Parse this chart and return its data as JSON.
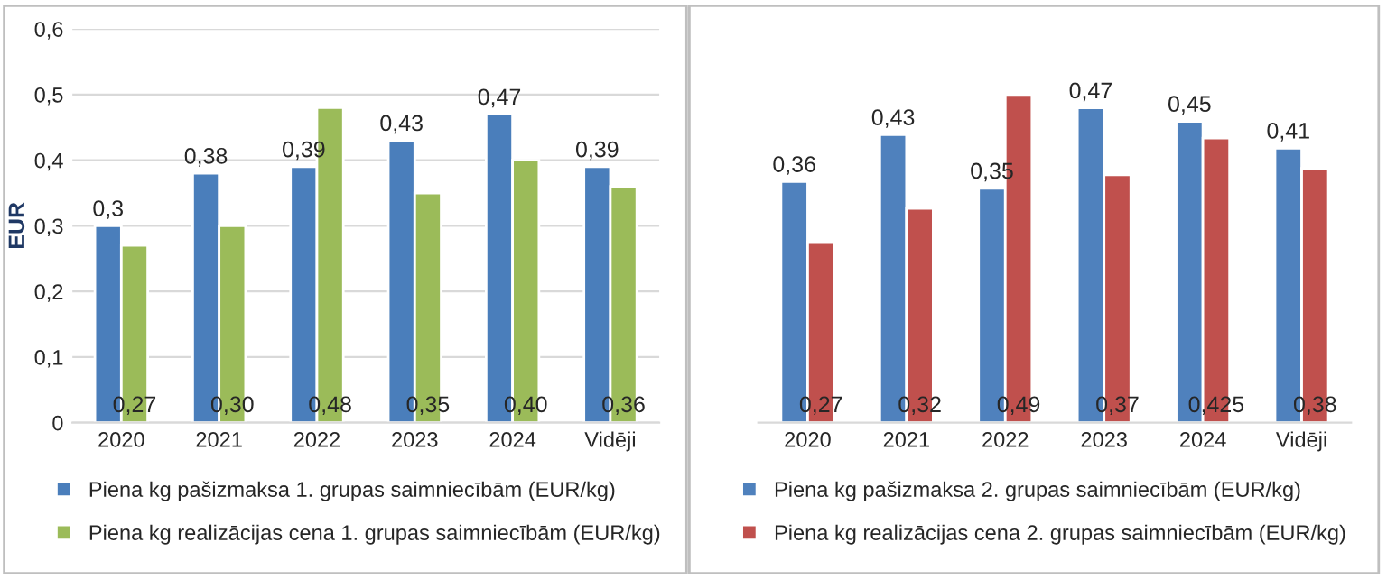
{
  "chart_data": [
    {
      "type": "bar",
      "ylabel": "EUR",
      "categories": [
        "2020",
        "2021",
        "2022",
        "2023",
        "2024",
        "Vidēji"
      ],
      "series": [
        {
          "name": "Piena kg pašizmaksa 1. grupas saimniecībām (EUR/kg)",
          "color": "#4a7ebb",
          "values": [
            0.3,
            0.38,
            0.39,
            0.43,
            0.47,
            0.39
          ],
          "value_labels": [
            "0,3",
            "0,38",
            "0,39",
            "0,43",
            "0,47",
            "0,39"
          ]
        },
        {
          "name": "Piena kg realizācijas cena 1. grupas saimniecībām (EUR/kg)",
          "color": "#9bbb59",
          "values": [
            0.27,
            0.3,
            0.48,
            0.35,
            0.4,
            0.36
          ],
          "value_labels": [
            "0,27",
            "0,30",
            "0,48",
            "0,35",
            "0,40",
            "0,36"
          ]
        }
      ],
      "ylim": [
        0,
        0.6
      ],
      "yticks": [
        {
          "value": 0,
          "label": "0"
        },
        {
          "value": 0.1,
          "label": "0,1"
        },
        {
          "value": 0.2,
          "label": "0,2"
        },
        {
          "value": 0.3,
          "label": "0,3"
        },
        {
          "value": 0.4,
          "label": "0,4"
        },
        {
          "value": 0.5,
          "label": "0,5"
        },
        {
          "value": 0.6,
          "label": "0,6"
        }
      ],
      "grid": "y",
      "legend": "bottom"
    },
    {
      "type": "bar",
      "categories": [
        "2020",
        "2021",
        "2022",
        "2023",
        "2024",
        "Vidēji"
      ],
      "series": [
        {
          "name": "Piena kg pašizmaksa 2. grupas saimniecībām (EUR/kg)",
          "color": "#4f81bd",
          "values": [
            0.36,
            0.43,
            0.35,
            0.47,
            0.45,
            0.41
          ],
          "value_labels": [
            "0,36",
            "0,43",
            "0,35",
            "0,47",
            "0,45",
            "0,41"
          ]
        },
        {
          "name": "Piena kg realizācijas cena 2. grupas saimniecībām (EUR/kg)",
          "color": "#c0504d",
          "values": [
            0.27,
            0.32,
            0.49,
            0.37,
            0.425,
            0.38
          ],
          "value_labels": [
            "0,27",
            "0,32",
            "0,49",
            "0,37",
            "0,425",
            "0,38"
          ]
        }
      ],
      "tick_labels": "x",
      "legend": "bottom"
    }
  ]
}
